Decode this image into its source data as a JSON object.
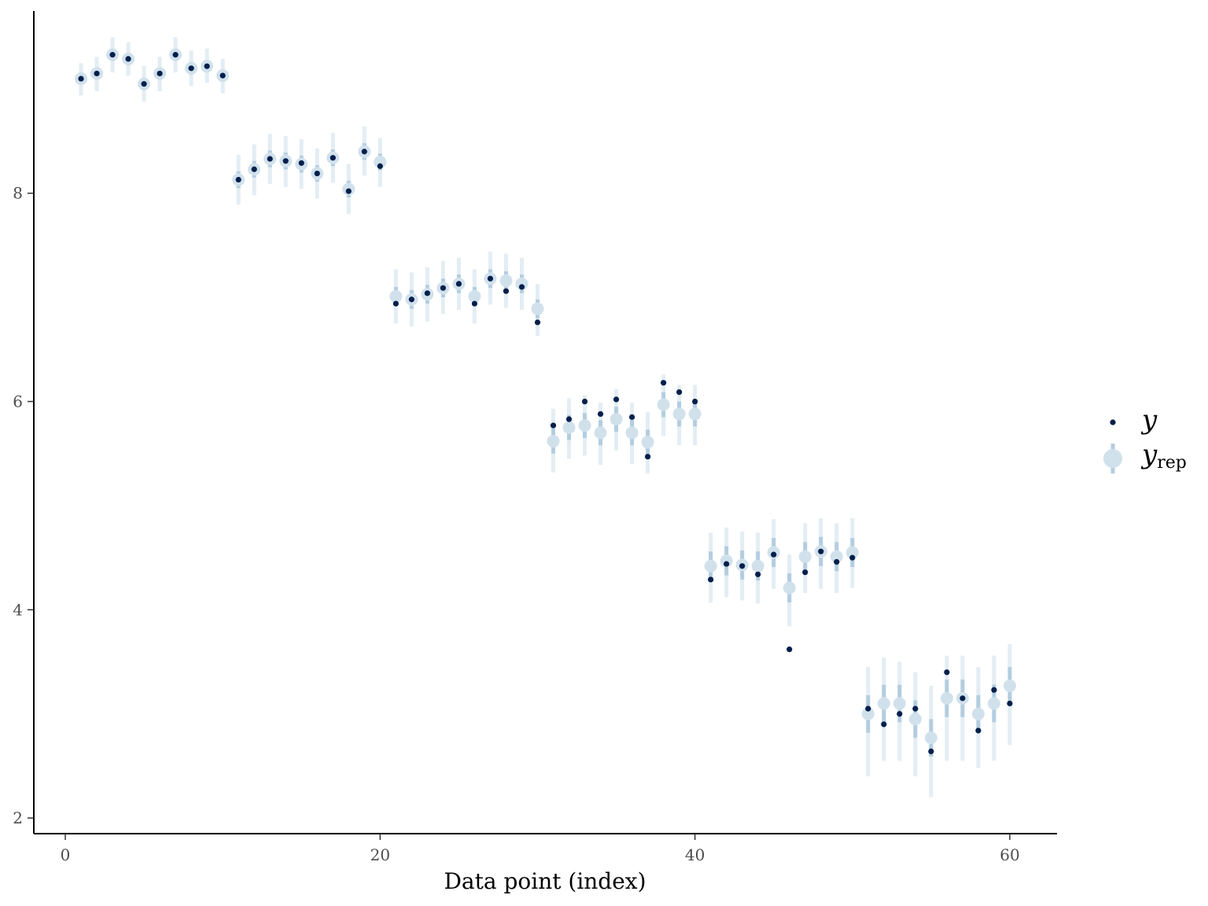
{
  "chart_data": {
    "type": "scatter",
    "title": "",
    "xlabel": "Data point (index)",
    "ylabel": "",
    "xlim": [
      -2,
      63
    ],
    "ylim": [
      1.85,
      9.75
    ],
    "x_ticks": [
      0,
      20,
      40,
      60
    ],
    "y_ticks": [
      2,
      4,
      6,
      8
    ],
    "grid": false,
    "legend_position": "right",
    "colors": {
      "y": "#011f4b",
      "yrep_point": "#d1e1ec",
      "yrep_inner": "#b3cde0",
      "yrep_outer": "#d1e1ec"
    },
    "series": [
      {
        "name": "y",
        "x": [
          1,
          2,
          3,
          4,
          5,
          6,
          7,
          8,
          9,
          10,
          11,
          12,
          13,
          14,
          15,
          16,
          17,
          18,
          19,
          20,
          21,
          22,
          23,
          24,
          25,
          26,
          27,
          28,
          29,
          30,
          31,
          32,
          33,
          34,
          35,
          36,
          37,
          38,
          39,
          40,
          41,
          42,
          43,
          44,
          45,
          46,
          47,
          48,
          49,
          50,
          51,
          52,
          53,
          54,
          55,
          56,
          57,
          58,
          59,
          60
        ],
        "values": [
          9.1,
          9.15,
          9.33,
          9.29,
          9.05,
          9.15,
          9.33,
          9.2,
          9.22,
          9.13,
          8.13,
          8.23,
          8.33,
          8.31,
          8.29,
          8.19,
          8.34,
          8.02,
          8.4,
          8.26,
          6.94,
          6.98,
          7.04,
          7.09,
          7.13,
          6.94,
          7.18,
          7.06,
          7.1,
          6.76,
          5.77,
          5.83,
          6.0,
          5.88,
          6.02,
          5.85,
          5.47,
          6.18,
          6.09,
          6.0,
          4.29,
          4.44,
          4.42,
          4.34,
          4.53,
          3.62,
          4.36,
          4.56,
          4.46,
          4.5,
          3.05,
          2.9,
          3.0,
          3.05,
          2.64,
          3.4,
          3.15,
          2.84,
          3.23,
          3.1
        ]
      },
      {
        "name": "y",
        "name_sub": "rep",
        "x": [
          1,
          2,
          3,
          4,
          5,
          6,
          7,
          8,
          9,
          10,
          11,
          12,
          13,
          14,
          15,
          16,
          17,
          18,
          19,
          20,
          21,
          22,
          23,
          24,
          25,
          26,
          27,
          28,
          29,
          30,
          31,
          32,
          33,
          34,
          35,
          36,
          37,
          38,
          39,
          40,
          41,
          42,
          43,
          44,
          45,
          46,
          47,
          48,
          49,
          50,
          51,
          52,
          53,
          54,
          55,
          56,
          57,
          58,
          59,
          60
        ],
        "median": [
          9.1,
          9.15,
          9.33,
          9.29,
          9.05,
          9.15,
          9.33,
          9.2,
          9.22,
          9.13,
          8.13,
          8.23,
          8.33,
          8.31,
          8.28,
          8.19,
          8.34,
          8.04,
          8.4,
          8.3,
          7.01,
          6.98,
          7.03,
          7.09,
          7.13,
          7.01,
          7.18,
          7.16,
          7.13,
          6.89,
          5.62,
          5.75,
          5.77,
          5.7,
          5.83,
          5.7,
          5.61,
          5.97,
          5.88,
          5.88,
          4.42,
          4.47,
          4.43,
          4.42,
          4.55,
          4.21,
          4.51,
          4.56,
          4.51,
          4.55,
          3.0,
          3.1,
          3.1,
          2.95,
          2.77,
          3.15,
          3.15,
          3.0,
          3.1,
          3.27
        ],
        "inner_lo": [
          9.04,
          9.09,
          9.27,
          9.23,
          8.99,
          9.09,
          9.27,
          9.14,
          9.16,
          9.07,
          8.05,
          8.15,
          8.25,
          8.23,
          8.2,
          8.11,
          8.26,
          7.96,
          8.32,
          8.22,
          6.92,
          6.89,
          6.94,
          7.0,
          7.04,
          6.92,
          7.09,
          7.07,
          7.04,
          6.8,
          5.5,
          5.63,
          5.65,
          5.58,
          5.71,
          5.58,
          5.49,
          5.85,
          5.76,
          5.76,
          4.28,
          4.33,
          4.29,
          4.28,
          4.41,
          4.07,
          4.37,
          4.42,
          4.37,
          4.41,
          2.82,
          2.92,
          2.92,
          2.77,
          2.59,
          2.97,
          2.97,
          2.82,
          2.92,
          3.09
        ],
        "inner_hi": [
          9.16,
          9.21,
          9.39,
          9.35,
          9.11,
          9.21,
          9.39,
          9.26,
          9.28,
          9.19,
          8.21,
          8.31,
          8.41,
          8.39,
          8.36,
          8.27,
          8.42,
          8.12,
          8.48,
          8.38,
          7.1,
          7.07,
          7.12,
          7.18,
          7.22,
          7.1,
          7.27,
          7.25,
          7.22,
          6.98,
          5.74,
          5.87,
          5.89,
          5.82,
          5.95,
          5.82,
          5.73,
          6.09,
          6.0,
          6.0,
          4.56,
          4.61,
          4.57,
          4.56,
          4.69,
          4.35,
          4.65,
          4.7,
          4.65,
          4.69,
          3.18,
          3.28,
          3.28,
          3.13,
          2.95,
          3.33,
          3.33,
          3.18,
          3.28,
          3.45
        ],
        "outer_lo": [
          8.94,
          8.98,
          9.16,
          9.13,
          8.88,
          8.98,
          9.16,
          9.03,
          9.06,
          8.96,
          7.89,
          7.98,
          8.09,
          8.06,
          8.04,
          7.95,
          8.1,
          7.8,
          8.17,
          8.06,
          6.75,
          6.72,
          6.77,
          6.84,
          6.88,
          6.75,
          6.93,
          6.9,
          6.88,
          6.63,
          5.32,
          5.45,
          5.48,
          5.39,
          5.53,
          5.4,
          5.31,
          5.67,
          5.58,
          5.58,
          4.07,
          4.12,
          4.09,
          4.06,
          4.2,
          3.84,
          4.16,
          4.2,
          4.16,
          4.21,
          2.4,
          2.55,
          2.55,
          2.4,
          2.2,
          2.55,
          2.55,
          2.48,
          2.55,
          2.7
        ],
        "outer_hi": [
          9.25,
          9.31,
          9.5,
          9.45,
          9.22,
          9.31,
          9.5,
          9.37,
          9.39,
          9.29,
          8.37,
          8.47,
          8.57,
          8.55,
          8.52,
          8.43,
          8.58,
          8.28,
          8.64,
          8.53,
          7.27,
          7.24,
          7.29,
          7.35,
          7.38,
          7.27,
          7.44,
          7.42,
          7.38,
          7.13,
          5.93,
          6.03,
          6.06,
          5.99,
          6.12,
          5.99,
          5.9,
          6.26,
          6.16,
          6.16,
          4.74,
          4.79,
          4.75,
          4.74,
          4.87,
          4.53,
          4.83,
          4.88,
          4.83,
          4.88,
          3.45,
          3.54,
          3.5,
          3.4,
          3.27,
          3.56,
          3.56,
          3.45,
          3.56,
          3.67
        ]
      }
    ]
  }
}
